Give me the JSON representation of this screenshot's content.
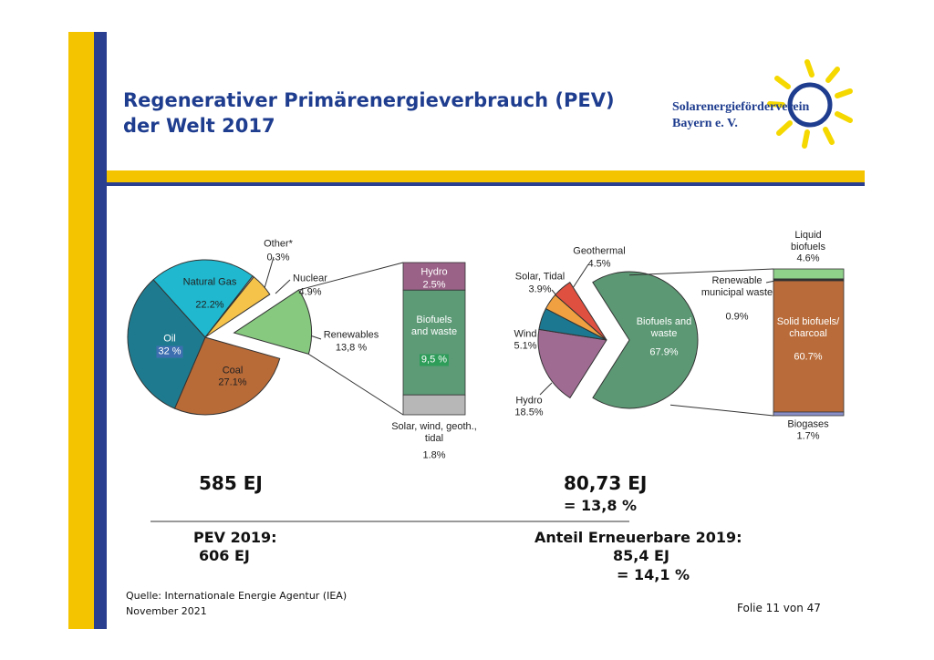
{
  "header": {
    "title_lines": [
      "Regenerativer Primärenergieverbrauch (PEV)",
      "der Welt 2017"
    ],
    "logo_lines": [
      "Solarenergieförderverein",
      "Bayern e. V."
    ]
  },
  "chart_data": [
    {
      "type": "pie",
      "categories": [
        "Renewables",
        "Coal",
        "Oil",
        "Natural Gas",
        "Other*",
        "Nuclear"
      ],
      "values": [
        13.8,
        27.1,
        32,
        22.2,
        0.3,
        4.9
      ],
      "value_labels": [
        "13,8 %",
        "27.1%",
        "32 %",
        "22.2%",
        "0.3%",
        "4.9%"
      ],
      "colors": [
        "#86c97f",
        "#b86a37",
        "#1e7b8f",
        "#1fb8cf",
        "#d8d8d8",
        "#f5c24a"
      ]
    },
    {
      "type": "bar",
      "stacked": true,
      "categories": [
        "Hydro",
        "Biofuels and waste",
        "Solar, wind, geoth., tidal"
      ],
      "values": [
        2.5,
        9.5,
        1.8
      ],
      "value_labels": [
        "2.5%",
        "9,5 %",
        "1.8%"
      ],
      "colors": [
        "#9a6287",
        "#5d9b77",
        "#b7b7b7"
      ]
    },
    {
      "type": "pie",
      "categories": [
        "Biofuels and waste",
        "Hydro",
        "Wind",
        "Solar, Tidal",
        "Geothermal"
      ],
      "values": [
        67.9,
        18.5,
        5.1,
        3.9,
        4.5
      ],
      "value_labels": [
        "67.9%",
        "18.5%",
        "5.1%",
        "3.9%",
        "4.5%"
      ],
      "colors": [
        "#5c9874",
        "#a06b93",
        "#1c7890",
        "#f0a040",
        "#e05040"
      ]
    },
    {
      "type": "bar",
      "stacked": true,
      "categories": [
        "Liquid biofuels",
        "Renewable municipal waste",
        "Solid biofuels/ charcoal",
        "Biogases"
      ],
      "values": [
        4.6,
        0.9,
        60.7,
        1.7
      ],
      "value_labels": [
        "4.6%",
        "0.9%",
        "60.7%",
        "1.7%"
      ],
      "colors": [
        "#8fd08a",
        "#333333",
        "#b96c3a",
        "#8a8fc8"
      ]
    }
  ],
  "summary": {
    "left_total": "585 EJ",
    "right_total": "80,73 EJ",
    "right_share": "= 13,8 %",
    "pev_2019_label": "PEV 2019:",
    "pev_2019_value": "606 EJ",
    "renew_2019_label": "Anteil Erneuerbare 2019:",
    "renew_2019_value": "85,4 EJ",
    "renew_2019_share": "= 14,1  %"
  },
  "footer": {
    "source": "Quelle: Internationale Energie Agentur (IEA)",
    "date": "November 2021",
    "slide": "Folie 11 von 47"
  }
}
